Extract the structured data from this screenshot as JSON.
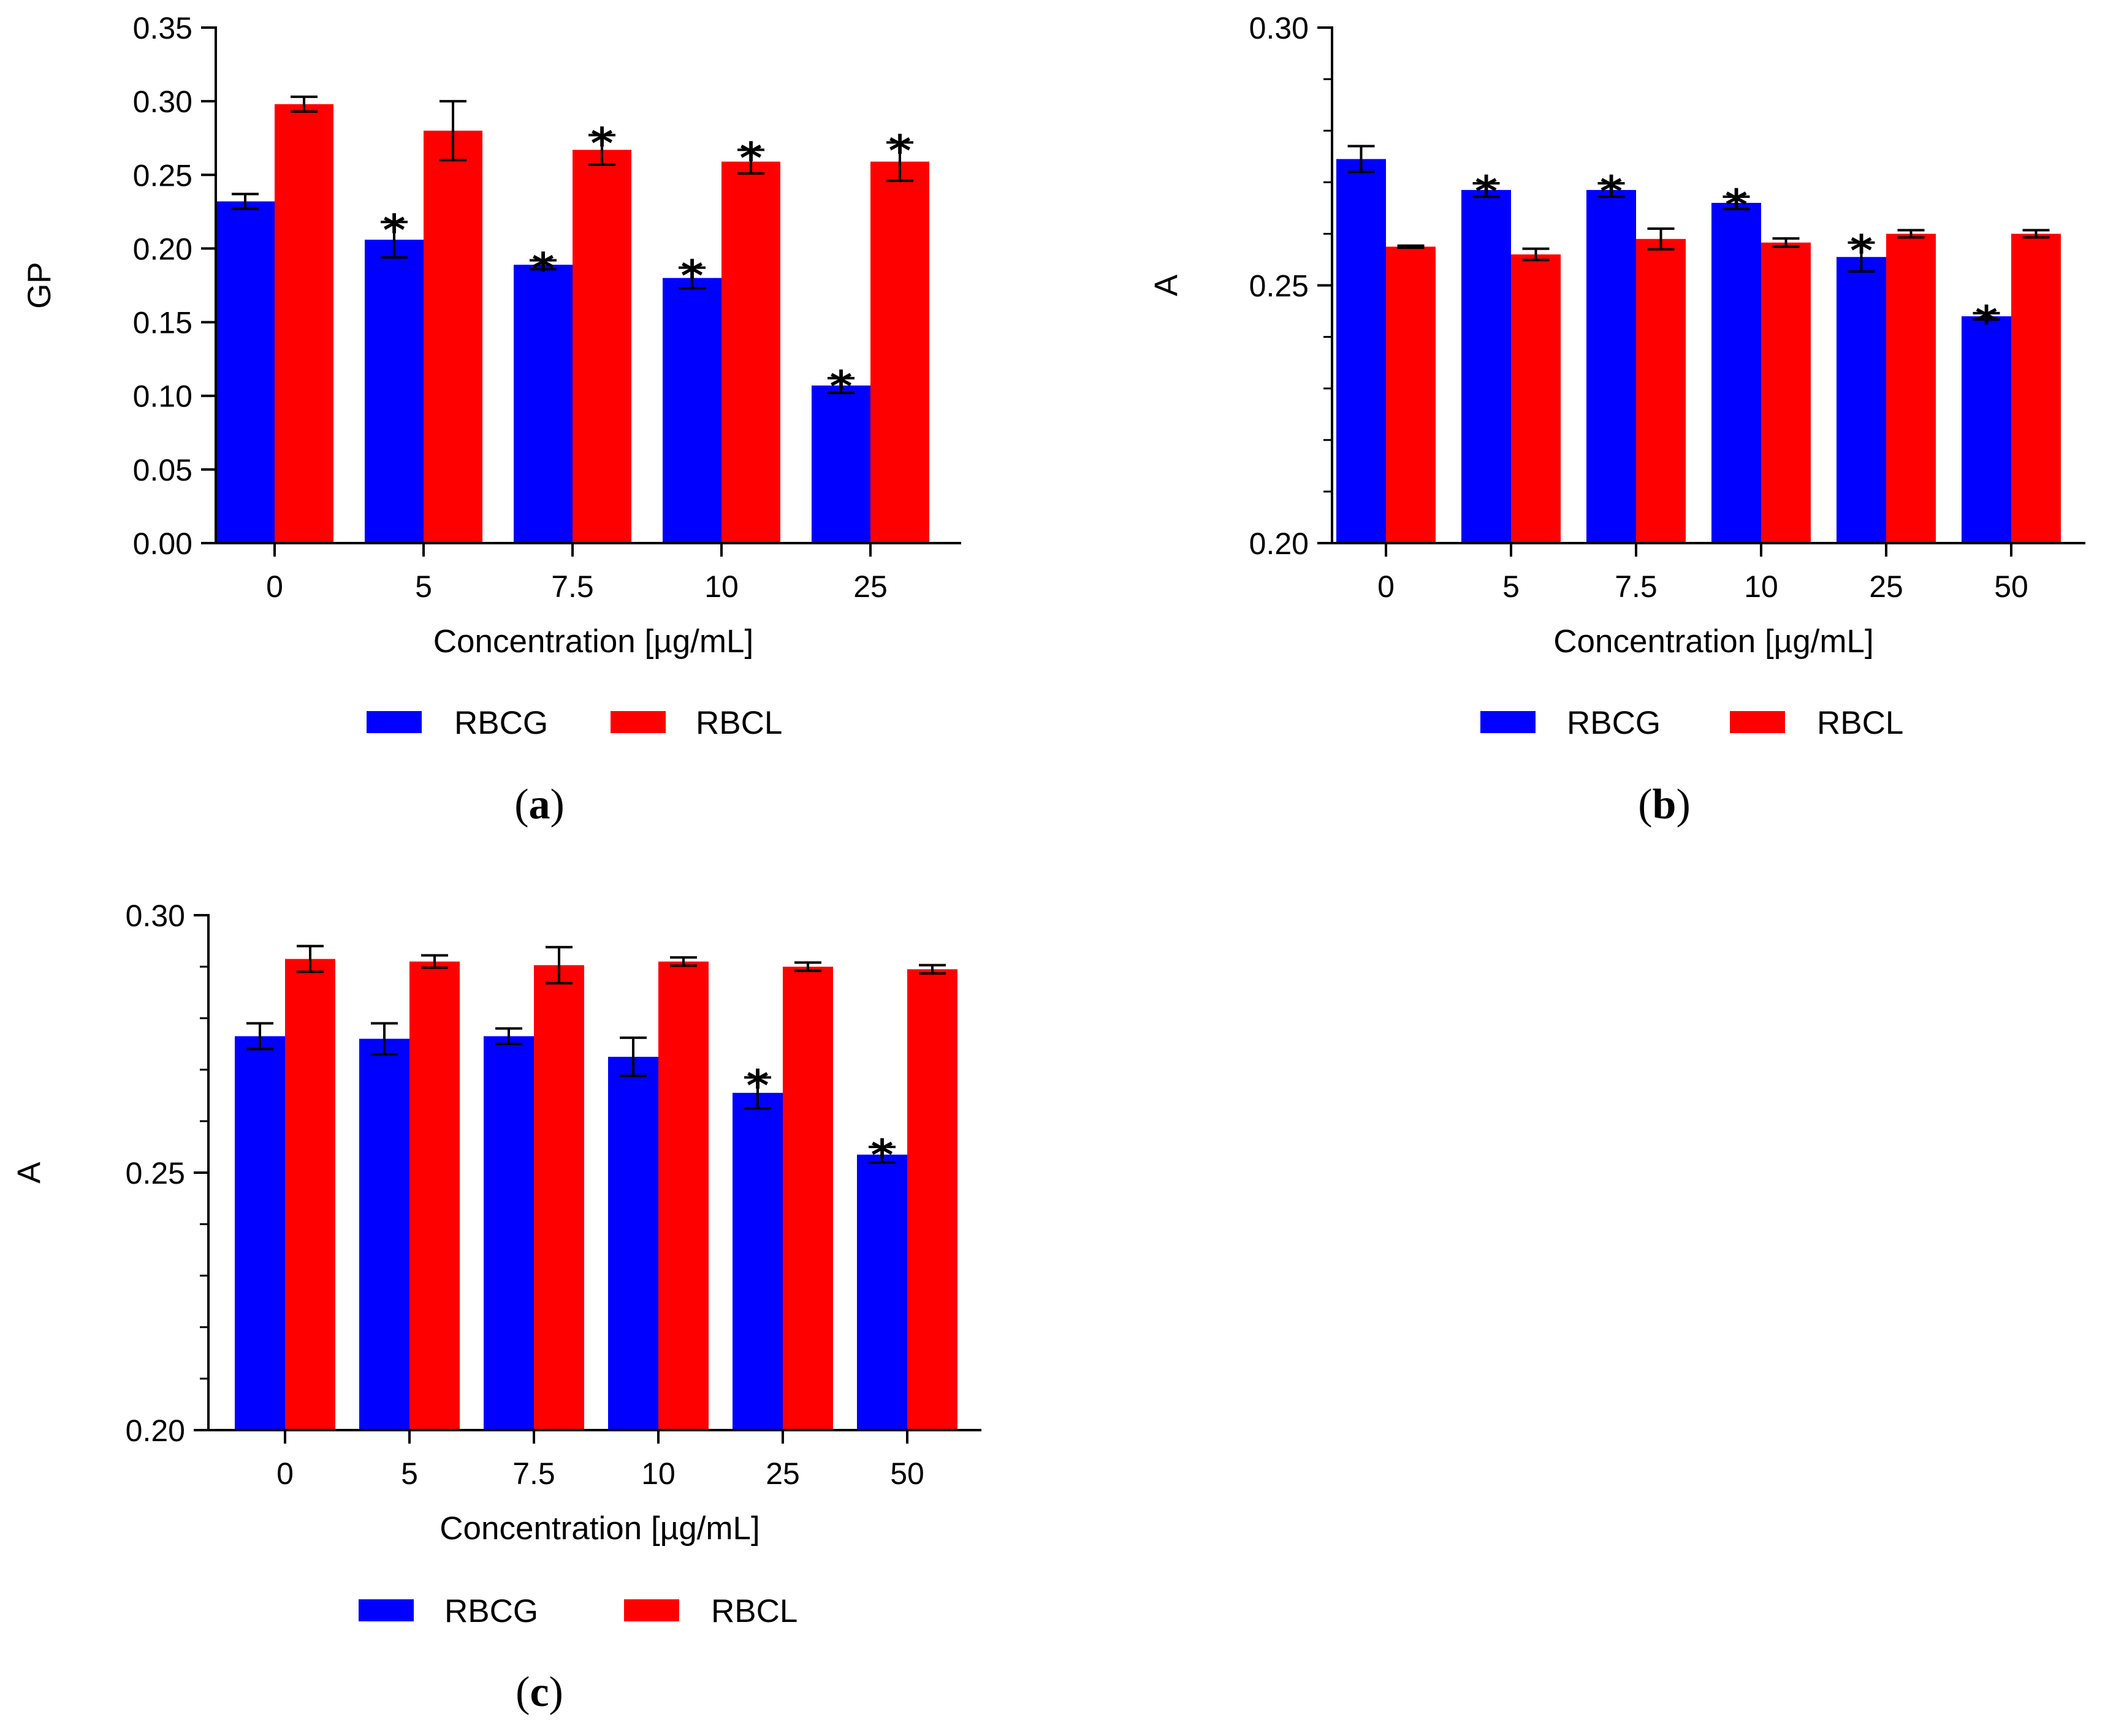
{
  "colors": {
    "RBCG": "#0000ff",
    "RBCL": "#ff0000"
  },
  "chart_data": [
    {
      "type": "bar",
      "panel": "a",
      "xlabel": "Concentration [µg/mL]",
      "ylabel": "GP",
      "ylim": [
        0,
        0.35
      ],
      "yticks": [
        "0.00",
        "0.05",
        "0.10",
        "0.15",
        "0.20",
        "0.25",
        "0.30",
        "0.35"
      ],
      "categories": [
        "0",
        "5",
        "7.5",
        "10",
        "25"
      ],
      "series": [
        {
          "name": "RBCG",
          "values": [
            0.232,
            0.206,
            0.189,
            0.18,
            0.107
          ],
          "errors": [
            0.005,
            0.012,
            0.003,
            0.007,
            0.005
          ],
          "significant": [
            false,
            true,
            true,
            true,
            true
          ]
        },
        {
          "name": "RBCL",
          "values": [
            0.298,
            0.28,
            0.267,
            0.259,
            0.259
          ],
          "errors": [
            0.005,
            0.02,
            0.01,
            0.008,
            0.013
          ],
          "significant": [
            false,
            false,
            true,
            true,
            true
          ]
        }
      ],
      "legend": [
        "RBCG",
        "RBCL"
      ]
    },
    {
      "type": "bar",
      "panel": "b",
      "xlabel": "Concentration [µg/mL]",
      "ylabel": "A",
      "ylim": [
        0.2,
        0.3
      ],
      "yticks": [
        "0.20",
        "0.25",
        "0.30"
      ],
      "categories": [
        "0",
        "5",
        "7.5",
        "10",
        "25",
        "50"
      ],
      "series": [
        {
          "name": "RBCG",
          "values": [
            0.2745,
            0.2685,
            0.2685,
            0.266,
            0.2555,
            0.244
          ],
          "errors": [
            0.0025,
            0.0013,
            0.0013,
            0.0012,
            0.0028,
            0.0006
          ],
          "significant": [
            false,
            true,
            true,
            true,
            true,
            true
          ]
        },
        {
          "name": "RBCL",
          "values": [
            0.2575,
            0.256,
            0.259,
            0.2583,
            0.26,
            0.26
          ],
          "errors": [
            0.0002,
            0.0011,
            0.002,
            0.0008,
            0.0007,
            0.0007
          ],
          "significant": [
            false,
            false,
            false,
            false,
            false,
            false
          ]
        }
      ],
      "legend": [
        "RBCG",
        "RBCL"
      ]
    },
    {
      "type": "bar",
      "panel": "c",
      "xlabel": "Concentration [µg/mL]",
      "ylabel": "A",
      "ylim": [
        0.2,
        0.3
      ],
      "yticks": [
        "0.20",
        "0.25",
        "0.30"
      ],
      "categories": [
        "0",
        "5",
        "7.5",
        "10",
        "25",
        "50"
      ],
      "series": [
        {
          "name": "RBCG",
          "values": [
            0.2765,
            0.276,
            0.2765,
            0.2725,
            0.2655,
            0.2535
          ],
          "errors": [
            0.0025,
            0.003,
            0.0015,
            0.0037,
            0.003,
            0.0015
          ],
          "significant": [
            false,
            false,
            false,
            false,
            true,
            true
          ]
        },
        {
          "name": "RBCL",
          "values": [
            0.2915,
            0.291,
            0.2903,
            0.291,
            0.29,
            0.2895
          ],
          "errors": [
            0.0025,
            0.0012,
            0.0035,
            0.0008,
            0.0008,
            0.0008
          ],
          "significant": [
            false,
            false,
            false,
            false,
            false,
            false
          ]
        }
      ],
      "legend": [
        "RBCG",
        "RBCL"
      ]
    }
  ],
  "panel_labels": [
    "a",
    "b",
    "c"
  ]
}
